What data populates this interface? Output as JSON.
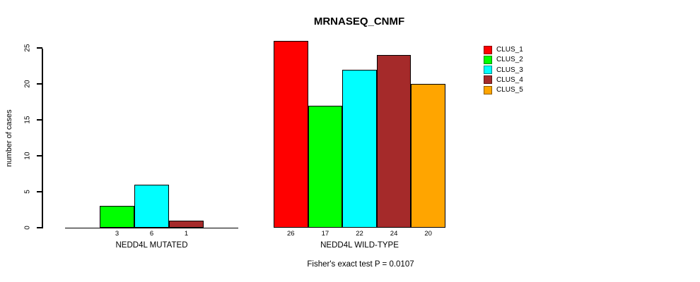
{
  "chart_data": {
    "type": "bar",
    "title": "MRNASEQ_CNMF",
    "ylabel": "number of cases",
    "xlabel": "",
    "ylim": [
      0,
      25
    ],
    "yticks": [
      0,
      5,
      10,
      15,
      20,
      25
    ],
    "grid": false,
    "legend_position": "right",
    "footnote": "Fisher's exact test P = 0.0107",
    "groups": [
      {
        "label": "NEDD4L MUTATED",
        "bars": [
          {
            "cluster": "CLUS_2",
            "value": 3,
            "tick_label": "3",
            "color": "#00FF00"
          },
          {
            "cluster": "CLUS_3",
            "value": 6,
            "tick_label": "6",
            "color": "#00FFFF"
          },
          {
            "cluster": "CLUS_4",
            "value": 1,
            "tick_label": "1",
            "color": "#A52A2A"
          }
        ]
      },
      {
        "label": "NEDD4L WILD-TYPE",
        "bars": [
          {
            "cluster": "CLUS_1",
            "value": 26,
            "tick_label": "26",
            "color": "#FF0000"
          },
          {
            "cluster": "CLUS_2",
            "value": 17,
            "tick_label": "17",
            "color": "#00FF00"
          },
          {
            "cluster": "CLUS_3",
            "value": 22,
            "tick_label": "22",
            "color": "#00FFFF"
          },
          {
            "cluster": "CLUS_4",
            "value": 24,
            "tick_label": "24",
            "color": "#A52A2A"
          },
          {
            "cluster": "CLUS_5",
            "value": 20,
            "tick_label": "20",
            "color": "#FFA500"
          }
        ]
      }
    ],
    "legend": [
      {
        "label": "CLUS_1",
        "color": "#FF0000"
      },
      {
        "label": "CLUS_2",
        "color": "#00FF00"
      },
      {
        "label": "CLUS_3",
        "color": "#00FFFF"
      },
      {
        "label": "CLUS_4",
        "color": "#A52A2A"
      },
      {
        "label": "CLUS_5",
        "color": "#FFA500"
      }
    ]
  }
}
